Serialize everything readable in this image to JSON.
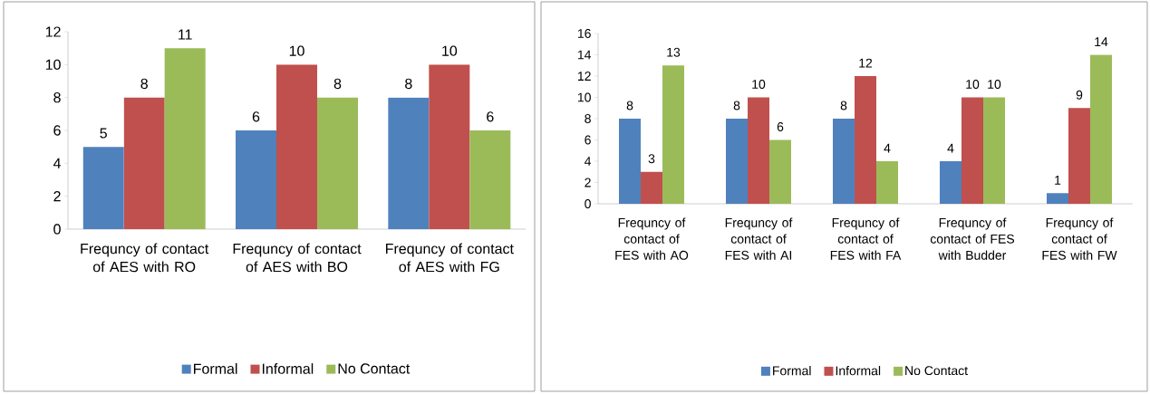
{
  "chart_data": [
    {
      "type": "bar",
      "categories": [
        "Frequncy of contact of AES with RO",
        "Frequncy of contact of AES with BO",
        "Frequncy of contact of AES with FG"
      ],
      "series": [
        {
          "name": "Formal",
          "color": "#4f81bd",
          "values": [
            5,
            6,
            8
          ]
        },
        {
          "name": "Informal",
          "color": "#c0504d",
          "values": [
            8,
            10,
            10
          ]
        },
        {
          "name": "No Contact",
          "color": "#9bbb59",
          "values": [
            11,
            8,
            6
          ]
        }
      ],
      "ylim": [
        0,
        12
      ],
      "yticks": [
        0,
        2,
        4,
        6,
        8,
        10,
        12
      ],
      "data_labels": true,
      "legend": "bottom",
      "grid": false
    },
    {
      "type": "bar",
      "categories": [
        "Frequncy of contact of FES with AO",
        "Frequncy of contact of FES with AI",
        "Frequncy of contact of FES with FA",
        "Frequncy of contact of FES with Budder",
        "Frequncy of contact of FES with FW"
      ],
      "series": [
        {
          "name": "Formal",
          "color": "#4f81bd",
          "values": [
            8,
            8,
            8,
            4,
            1
          ]
        },
        {
          "name": "Informal",
          "color": "#c0504d",
          "values": [
            3,
            10,
            12,
            10,
            9
          ]
        },
        {
          "name": "No Contact",
          "color": "#9bbb59",
          "values": [
            13,
            6,
            4,
            10,
            14
          ]
        }
      ],
      "ylim": [
        0,
        16
      ],
      "yticks": [
        0,
        2,
        4,
        6,
        8,
        10,
        12,
        14,
        16
      ],
      "data_labels": true,
      "legend": "bottom",
      "grid": false
    }
  ]
}
